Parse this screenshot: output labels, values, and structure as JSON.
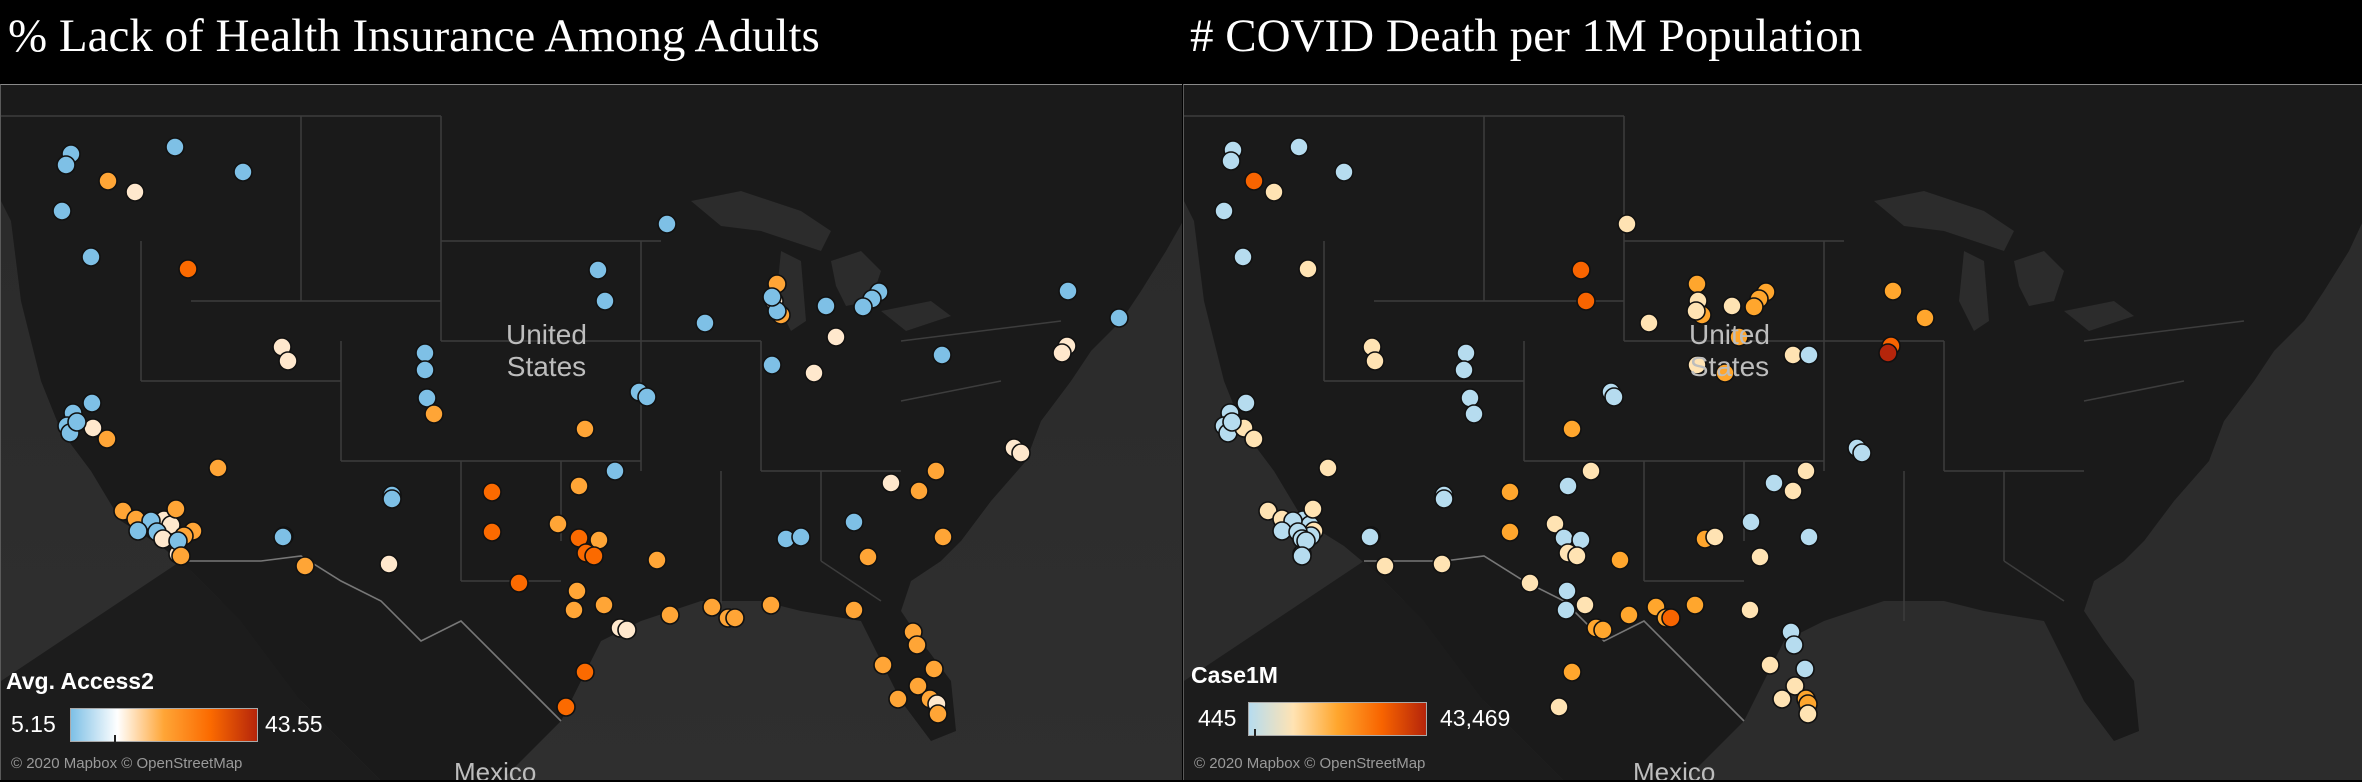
{
  "panels": [
    {
      "title": "% Lack of Health Insurance Among Adults",
      "legend": {
        "title": "Avg. Access2",
        "min": "5.15",
        "max": "43.55",
        "colors": [
          "#7ec0e6",
          "#ffffff",
          "#ffa536",
          "#fb6a00",
          "#b5250b"
        ]
      }
    },
    {
      "title": "# COVID Death per 1M Population",
      "legend": {
        "title": "Case1M",
        "min": "445",
        "max": "43,469",
        "colors": [
          "#b6dcef",
          "#ffe3b3",
          "#ffa62d",
          "#f86400",
          "#b5250b"
        ]
      }
    }
  ],
  "map": {
    "country_label": "United\nStates",
    "mexico_label": "Mexico",
    "attribution": "© 2020 Mapbox © OpenStreetMap"
  },
  "markers_left": [
    [
      "rgb(126,192,230)",
      70,
      153
    ],
    [
      "rgb(126,192,230)",
      65,
      164
    ],
    [
      "rgb(126,192,230)",
      174,
      146
    ],
    [
      "rgb(126,192,230)",
      242,
      171
    ],
    [
      "rgb(255,165,54)",
      107,
      180
    ],
    [
      "rgb(255,232,205)",
      134,
      191
    ],
    [
      "rgb(126,192,230)",
      61,
      210
    ],
    [
      "rgb(126,192,230)",
      90,
      256
    ],
    [
      "rgb(251,106,0)",
      187,
      268
    ],
    [
      "rgb(126,192,230)",
      666,
      223
    ],
    [
      "rgb(126,192,230)",
      597,
      269
    ],
    [
      "rgb(126,192,230)",
      604,
      300
    ],
    [
      "rgb(126,192,230)",
      704,
      322
    ],
    [
      "rgb(255,165,54)",
      776,
      283
    ],
    [
      "rgb(255,232,205)",
      773,
      300
    ],
    [
      "rgb(255,165,54)",
      780,
      314
    ],
    [
      "rgb(126,192,230)",
      776,
      310
    ],
    [
      "rgb(126,192,230)",
      771,
      296
    ],
    [
      "rgb(126,192,230)",
      825,
      305
    ],
    [
      "rgb(126,192,230)",
      878,
      291
    ],
    [
      "rgb(126,192,230)",
      871,
      298
    ],
    [
      "rgb(126,192,230)",
      862,
      306
    ],
    [
      "rgb(255,232,205)",
      835,
      336
    ],
    [
      "rgb(126,192,230)",
      771,
      364
    ],
    [
      "rgb(255,232,205)",
      813,
      372
    ],
    [
      "rgb(126,192,230)",
      941,
      354
    ],
    [
      "rgb(126,192,230)",
      1067,
      290
    ],
    [
      "rgb(126,192,230)",
      1118,
      317
    ],
    [
      "rgb(255,232,205)",
      1066,
      345
    ],
    [
      "rgb(255,232,205)",
      1061,
      352
    ],
    [
      "rgb(255,232,205)",
      281,
      346
    ],
    [
      "rgb(255,232,205)",
      287,
      360
    ],
    [
      "rgb(126,192,230)",
      424,
      352
    ],
    [
      "rgb(126,192,230)",
      424,
      369
    ],
    [
      "rgb(126,192,230)",
      426,
      397
    ],
    [
      "rgb(255,165,54)",
      433,
      413
    ],
    [
      "rgb(126,192,230)",
      638,
      391
    ],
    [
      "rgb(126,192,230)",
      646,
      396
    ],
    [
      "rgb(126,192,230)",
      72,
      412
    ],
    [
      "rgb(126,192,230)",
      91,
      402
    ],
    [
      "rgb(126,192,230)",
      66,
      425
    ],
    [
      "rgb(126,192,230)",
      69,
      432
    ],
    [
      "rgb(255,232,205)",
      92,
      427
    ],
    [
      "rgb(255,165,54)",
      106,
      438
    ],
    [
      "rgb(126,192,230)",
      76,
      421
    ],
    [
      "rgb(255,165,54)",
      584,
      428
    ],
    [
      "rgb(255,165,54)",
      217,
      467
    ],
    [
      "rgb(126,192,230)",
      614,
      470
    ],
    [
      "rgb(255,232,205)",
      1013,
      447
    ],
    [
      "rgb(255,232,205)",
      1020,
      452
    ],
    [
      "rgb(251,106,0)",
      491,
      491
    ],
    [
      "rgb(255,165,54)",
      578,
      485
    ],
    [
      "rgb(126,192,230)",
      391,
      494
    ],
    [
      "rgb(126,192,230)",
      391,
      498
    ],
    [
      "rgb(255,165,54)",
      935,
      470
    ],
    [
      "rgb(255,165,54)",
      918,
      490
    ],
    [
      "rgb(255,232,205)",
      890,
      482
    ],
    [
      "rgb(255,165,54)",
      122,
      510
    ],
    [
      "rgb(255,165,54)",
      135,
      518
    ],
    [
      "rgb(255,232,205)",
      155,
      521
    ],
    [
      "rgb(255,232,205)",
      163,
      519
    ],
    [
      "rgb(255,232,205)",
      170,
      524
    ],
    [
      "rgb(255,165,54)",
      175,
      508
    ],
    [
      "rgb(255,165,54)",
      192,
      530
    ],
    [
      "rgb(255,165,54)",
      183,
      535
    ],
    [
      "rgb(255,232,205)",
      177,
      553
    ],
    [
      "rgb(126,192,230)",
      150,
      520
    ],
    [
      "rgb(126,192,230)",
      137,
      530
    ],
    [
      "rgb(126,192,230)",
      156,
      531
    ],
    [
      "rgb(255,232,205)",
      162,
      538
    ],
    [
      "rgb(126,192,230)",
      177,
      540
    ],
    [
      "rgb(255,165,54)",
      180,
      555
    ],
    [
      "rgb(126,192,230)",
      283,
      535
    ],
    [
      "rgb(126,192,230)",
      282,
      536
    ],
    [
      "rgb(255,165,54)",
      304,
      565
    ],
    [
      "rgb(255,232,205)",
      388,
      563
    ],
    [
      "rgb(251,106,0)",
      491,
      531
    ],
    [
      "rgb(255,165,54)",
      557,
      523
    ],
    [
      "rgb(251,106,0)",
      578,
      537
    ],
    [
      "rgb(255,165,54)",
      598,
      539
    ],
    [
      "rgb(251,106,0)",
      585,
      552
    ],
    [
      "rgb(251,106,0)",
      593,
      555
    ],
    [
      "rgb(255,165,54)",
      656,
      559
    ],
    [
      "rgb(126,192,230)",
      785,
      538
    ],
    [
      "rgb(126,192,230)",
      800,
      536
    ],
    [
      "rgb(126,192,230)",
      853,
      521
    ],
    [
      "rgb(255,165,54)",
      867,
      556
    ],
    [
      "rgb(255,165,54)",
      942,
      536
    ],
    [
      "rgb(251,106,0)",
      518,
      582
    ],
    [
      "rgb(255,165,54)",
      576,
      590
    ],
    [
      "rgb(255,165,54)",
      573,
      609
    ],
    [
      "rgb(255,165,54)",
      603,
      604
    ],
    [
      "rgb(255,165,54)",
      669,
      614
    ],
    [
      "rgb(255,232,205)",
      619,
      627
    ],
    [
      "rgb(255,232,205)",
      626,
      629
    ],
    [
      "rgb(255,165,54)",
      711,
      606
    ],
    [
      "rgb(255,165,54)",
      727,
      617
    ],
    [
      "rgb(255,165,54)",
      734,
      617
    ],
    [
      "rgb(255,165,54)",
      770,
      604
    ],
    [
      "rgb(255,165,54)",
      853,
      609
    ],
    [
      "rgb(255,165,54)",
      912,
      631
    ],
    [
      "rgb(255,165,54)",
      916,
      644
    ],
    [
      "rgb(255,165,54)",
      933,
      668
    ],
    [
      "rgb(251,106,0)",
      584,
      671
    ],
    [
      "rgb(255,165,54)",
      882,
      664
    ],
    [
      "rgb(255,165,54)",
      897,
      698
    ],
    [
      "rgb(255,165,54)",
      917,
      685
    ],
    [
      "rgb(255,165,54)",
      929,
      698
    ],
    [
      "rgb(255,232,205)",
      936,
      703
    ],
    [
      "rgb(255,165,54)",
      937,
      713
    ],
    [
      "rgb(251,106,0)",
      565,
      706
    ]
  ],
  "markers_right": [
    [
      "rgb(182,220,239)",
      835,
      149
    ],
    [
      "rgb(182,220,239)",
      833,
      160
    ],
    [
      "rgb(182,220,239)",
      901,
      146
    ],
    [
      "rgb(182,220,239)",
      946,
      171
    ],
    [
      "rgb(248,100,0)",
      856,
      180
    ],
    [
      "rgb(255,227,179)",
      876,
      191
    ],
    [
      "rgb(182,220,239)",
      826,
      210
    ],
    [
      "rgb(182,220,239)",
      845,
      256
    ],
    [
      "rgb(255,227,179)",
      910,
      268
    ],
    [
      "rgb(255,227,179)",
      1229,
      223
    ],
    [
      "rgb(248,100,0)",
      1183,
      269
    ],
    [
      "rgb(248,100,0)",
      1188,
      300
    ],
    [
      "rgb(255,227,179)",
      1251,
      322
    ],
    [
      "rgb(255,166,45)",
      1299,
      283
    ],
    [
      "rgb(255,227,179)",
      1300,
      300
    ],
    [
      "rgb(255,166,45)",
      1304,
      314
    ],
    [
      "rgb(255,227,179)",
      1298,
      310
    ],
    [
      "rgb(255,227,179)",
      1334,
      305
    ],
    [
      "rgb(255,166,45)",
      1368,
      291
    ],
    [
      "rgb(255,166,45)",
      1361,
      298
    ],
    [
      "rgb(255,166,45)",
      1356,
      306
    ],
    [
      "rgb(255,166,45)",
      1341,
      336
    ],
    [
      "rgb(255,227,179)",
      1299,
      364
    ],
    [
      "rgb(255,166,45)",
      1327,
      372
    ],
    [
      "rgb(255,227,179)",
      1395,
      354
    ],
    [
      "rgb(182,220,239)",
      1411,
      354
    ],
    [
      "rgb(255,166,45)",
      1495,
      290
    ],
    [
      "rgb(255,166,45)",
      1527,
      317
    ],
    [
      "rgb(248,100,0)",
      1493,
      345
    ],
    [
      "rgb(181,37,11)",
      1490,
      352
    ],
    [
      "rgb(255,227,179)",
      974,
      346
    ],
    [
      "rgb(255,227,179)",
      977,
      360
    ],
    [
      "rgb(182,220,239)",
      1068,
      352
    ],
    [
      "rgb(182,220,239)",
      1066,
      369
    ],
    [
      "rgb(182,220,239)",
      1072,
      397
    ],
    [
      "rgb(182,220,239)",
      1076,
      413
    ],
    [
      "rgb(182,220,239)",
      1213,
      391
    ],
    [
      "rgb(182,220,239)",
      1216,
      396
    ],
    [
      "rgb(182,220,239)",
      832,
      412
    ],
    [
      "rgb(182,220,239)",
      848,
      402
    ],
    [
      "rgb(182,220,239)",
      826,
      425
    ],
    [
      "rgb(182,220,239)",
      830,
      432
    ],
    [
      "rgb(255,227,179)",
      846,
      427
    ],
    [
      "rgb(255,227,179)",
      856,
      438
    ],
    [
      "rgb(182,220,239)",
      834,
      421
    ],
    [
      "rgb(255,166,45)",
      1174,
      428
    ],
    [
      "rgb(255,227,179)",
      930,
      467
    ],
    [
      "rgb(255,227,179)",
      1193,
      470
    ],
    [
      "rgb(182,220,239)",
      1459,
      447
    ],
    [
      "rgb(182,220,239)",
      1464,
      452
    ],
    [
      "rgb(255,166,45)",
      1112,
      491
    ],
    [
      "rgb(182,220,239)",
      1170,
      485
    ],
    [
      "rgb(182,220,239)",
      1046,
      494
    ],
    [
      "rgb(182,220,239)",
      1046,
      498
    ],
    [
      "rgb(255,227,179)",
      1408,
      470
    ],
    [
      "rgb(255,227,179)",
      1395,
      490
    ],
    [
      "rgb(182,220,239)",
      1376,
      482
    ],
    [
      "rgb(255,227,179)",
      870,
      510
    ],
    [
      "rgb(255,227,179)",
      884,
      518
    ],
    [
      "rgb(182,220,239)",
      898,
      521
    ],
    [
      "rgb(182,220,239)",
      905,
      519
    ],
    [
      "rgb(182,220,239)",
      912,
      524
    ],
    [
      "rgb(255,227,179)",
      915,
      508
    ],
    [
      "rgb(255,227,179)",
      916,
      530
    ],
    [
      "rgb(182,220,239)",
      913,
      535
    ],
    [
      "rgb(182,220,239)",
      904,
      553
    ],
    [
      "rgb(182,220,239)",
      895,
      520
    ],
    [
      "rgb(182,220,239)",
      884,
      530
    ],
    [
      "rgb(182,220,239)",
      900,
      531
    ],
    [
      "rgb(182,220,239)",
      904,
      538
    ],
    [
      "rgb(182,220,239)",
      908,
      540
    ],
    [
      "rgb(182,220,239)",
      904,
      555
    ],
    [
      "rgb(182,220,239)",
      973,
      535
    ],
    [
      "rgb(182,220,239)",
      972,
      536
    ],
    [
      "rgb(255,227,179)",
      987,
      565
    ],
    [
      "rgb(255,227,179)",
      1044,
      563
    ],
    [
      "rgb(255,166,45)",
      1112,
      531
    ],
    [
      "rgb(255,227,179)",
      1157,
      523
    ],
    [
      "rgb(182,220,239)",
      1166,
      537
    ],
    [
      "rgb(182,220,239)",
      1183,
      539
    ],
    [
      "rgb(255,227,179)",
      1170,
      552
    ],
    [
      "rgb(255,227,179)",
      1179,
      555
    ],
    [
      "rgb(255,166,45)",
      1222,
      559
    ],
    [
      "rgb(255,166,45)",
      1307,
      538
    ],
    [
      "rgb(255,227,179)",
      1317,
      536
    ],
    [
      "rgb(182,220,239)",
      1353,
      521
    ],
    [
      "rgb(255,227,179)",
      1362,
      556
    ],
    [
      "rgb(182,220,239)",
      1411,
      536
    ],
    [
      "rgb(255,227,179)",
      1132,
      582
    ],
    [
      "rgb(182,220,239)",
      1169,
      590
    ],
    [
      "rgb(182,220,239)",
      1168,
      609
    ],
    [
      "rgb(255,227,179)",
      1187,
      604
    ],
    [
      "rgb(255,166,45)",
      1231,
      614
    ],
    [
      "rgb(255,166,45)",
      1198,
      627
    ],
    [
      "rgb(255,166,45)",
      1205,
      629
    ],
    [
      "rgb(255,166,45)",
      1258,
      606
    ],
    [
      "rgb(255,166,45)",
      1268,
      617
    ],
    [
      "rgb(248,100,0)",
      1273,
      617
    ],
    [
      "rgb(255,166,45)",
      1297,
      604
    ],
    [
      "rgb(255,227,179)",
      1352,
      609
    ],
    [
      "rgb(182,220,239)",
      1393,
      631
    ],
    [
      "rgb(182,220,239)",
      1396,
      644
    ],
    [
      "rgb(182,220,239)",
      1407,
      668
    ],
    [
      "rgb(255,166,45)",
      1174,
      671
    ],
    [
      "rgb(255,227,179)",
      1372,
      664
    ],
    [
      "rgb(255,227,179)",
      1384,
      698
    ],
    [
      "rgb(255,227,179)",
      1397,
      685
    ],
    [
      "rgb(255,166,45)",
      1408,
      698
    ],
    [
      "rgb(255,166,45)",
      1410,
      703
    ],
    [
      "rgb(255,227,179)",
      1410,
      713
    ],
    [
      "rgb(255,227,179)",
      1161,
      706
    ]
  ]
}
